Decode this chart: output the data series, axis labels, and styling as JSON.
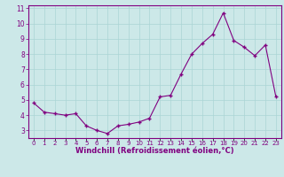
{
  "x_vals": [
    0,
    1,
    2,
    3,
    4,
    5,
    6,
    7,
    8,
    9,
    10,
    11,
    12,
    13,
    14,
    15,
    16,
    17,
    18,
    19,
    20,
    21,
    22,
    23
  ],
  "y_vals": [
    4.8,
    4.2,
    4.1,
    4.0,
    4.1,
    3.3,
    3.0,
    2.8,
    3.3,
    3.4,
    3.55,
    3.8,
    5.2,
    5.3,
    6.7,
    8.0,
    8.7,
    9.3,
    10.7,
    8.9,
    8.45,
    7.9,
    8.6,
    5.2
  ],
  "xlabel": "Windchill (Refroidissement éolien,°C)",
  "xlim": [
    -0.5,
    23.5
  ],
  "ylim": [
    2.5,
    11.2
  ],
  "yticks": [
    3,
    4,
    5,
    6,
    7,
    8,
    9,
    10,
    11
  ],
  "xtick_labels": [
    "0",
    "1",
    "2",
    "3",
    "4",
    "5",
    "6",
    "7",
    "8",
    "9",
    "10",
    "11",
    "12",
    "13",
    "14",
    "15",
    "16",
    "17",
    "18",
    "19",
    "20",
    "21",
    "22",
    "23"
  ],
  "line_color": "#800080",
  "bg_color": "#cce8e8",
  "grid_color": "#aad4d4",
  "xlabel_color": "#800080",
  "tick_color": "#800080",
  "spine_color": "#800080"
}
